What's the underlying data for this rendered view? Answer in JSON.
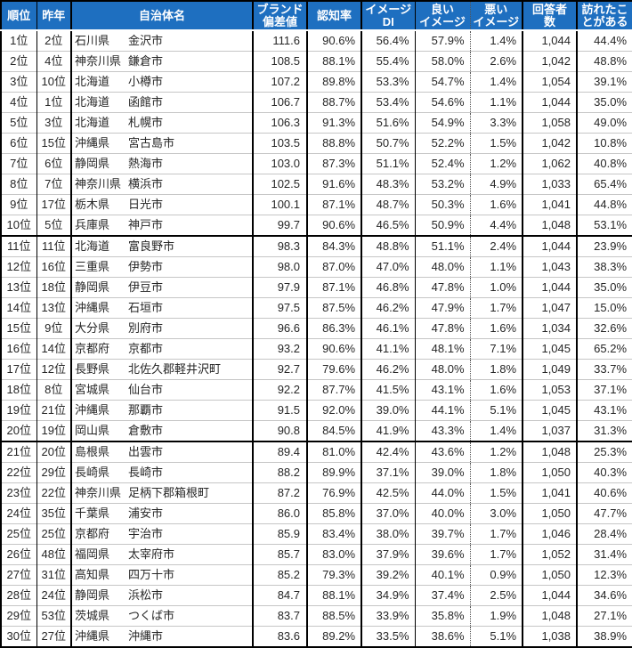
{
  "colors": {
    "header_bg": "#1E6FC0",
    "header_text": "#ffffff",
    "body_text": "#262626",
    "row_rule": "#c6c6c6",
    "heavy_rule": "#000000"
  },
  "chart_data": {
    "type": "table",
    "header_labels": [
      "順位",
      "昨年",
      "自治体名",
      "ブランド\n偏差値",
      "認知率",
      "イメージ\nDI",
      "良い\nイメージ",
      "悪い\nイメージ",
      "回答者\n数",
      "訪れたこ\nとがある"
    ],
    "field_names": [
      "rank",
      "prev_year_rank",
      "prefecture",
      "municipality",
      "brand_score",
      "recognition_rate",
      "image_di",
      "good_image",
      "bad_image",
      "respondents",
      "visited"
    ],
    "group_separators_after_ranks": [
      10,
      20
    ],
    "rows": [
      [
        "1位",
        "2位",
        "石川県",
        "金沢市",
        "111.6",
        "90.6%",
        "56.4%",
        "57.9%",
        "1.4%",
        "1,044",
        "44.4%"
      ],
      [
        "2位",
        "4位",
        "神奈川県",
        "鎌倉市",
        "108.5",
        "88.1%",
        "55.4%",
        "58.0%",
        "2.6%",
        "1,042",
        "48.8%"
      ],
      [
        "3位",
        "10位",
        "北海道",
        "小樽市",
        "107.2",
        "89.8%",
        "53.3%",
        "54.7%",
        "1.4%",
        "1,054",
        "39.1%"
      ],
      [
        "4位",
        "1位",
        "北海道",
        "函館市",
        "106.7",
        "88.7%",
        "53.4%",
        "54.6%",
        "1.1%",
        "1,044",
        "35.0%"
      ],
      [
        "5位",
        "3位",
        "北海道",
        "札幌市",
        "106.3",
        "91.3%",
        "51.6%",
        "54.9%",
        "3.3%",
        "1,058",
        "49.0%"
      ],
      [
        "6位",
        "15位",
        "沖縄県",
        "宮古島市",
        "103.5",
        "88.8%",
        "50.7%",
        "52.2%",
        "1.5%",
        "1,042",
        "10.8%"
      ],
      [
        "7位",
        "6位",
        "静岡県",
        "熱海市",
        "103.0",
        "87.3%",
        "51.1%",
        "52.4%",
        "1.2%",
        "1,062",
        "40.8%"
      ],
      [
        "8位",
        "7位",
        "神奈川県",
        "横浜市",
        "102.5",
        "91.6%",
        "48.3%",
        "53.2%",
        "4.9%",
        "1,033",
        "65.4%"
      ],
      [
        "9位",
        "17位",
        "栃木県",
        "日光市",
        "100.1",
        "87.1%",
        "48.7%",
        "50.3%",
        "1.6%",
        "1,041",
        "44.8%"
      ],
      [
        "10位",
        "5位",
        "兵庫県",
        "神戸市",
        "99.7",
        "90.6%",
        "46.5%",
        "50.9%",
        "4.4%",
        "1,048",
        "53.1%"
      ],
      [
        "11位",
        "11位",
        "北海道",
        "富良野市",
        "98.3",
        "84.3%",
        "48.8%",
        "51.1%",
        "2.4%",
        "1,044",
        "23.9%"
      ],
      [
        "12位",
        "16位",
        "三重県",
        "伊勢市",
        "98.0",
        "87.0%",
        "47.0%",
        "48.0%",
        "1.1%",
        "1,043",
        "38.3%"
      ],
      [
        "13位",
        "18位",
        "静岡県",
        "伊豆市",
        "97.9",
        "87.1%",
        "46.8%",
        "47.8%",
        "1.0%",
        "1,044",
        "35.0%"
      ],
      [
        "14位",
        "13位",
        "沖縄県",
        "石垣市",
        "97.5",
        "87.5%",
        "46.2%",
        "47.9%",
        "1.7%",
        "1,047",
        "15.0%"
      ],
      [
        "15位",
        "9位",
        "大分県",
        "別府市",
        "96.6",
        "86.3%",
        "46.1%",
        "47.8%",
        "1.6%",
        "1,034",
        "32.6%"
      ],
      [
        "16位",
        "14位",
        "京都府",
        "京都市",
        "93.2",
        "90.6%",
        "41.1%",
        "48.1%",
        "7.1%",
        "1,045",
        "65.2%"
      ],
      [
        "17位",
        "12位",
        "長野県",
        "北佐久郡軽井沢町",
        "92.7",
        "79.6%",
        "46.2%",
        "48.0%",
        "1.8%",
        "1,049",
        "33.7%"
      ],
      [
        "18位",
        "8位",
        "宮城県",
        "仙台市",
        "92.2",
        "87.7%",
        "41.5%",
        "43.1%",
        "1.6%",
        "1,053",
        "37.1%"
      ],
      [
        "19位",
        "21位",
        "沖縄県",
        "那覇市",
        "91.5",
        "92.0%",
        "39.0%",
        "44.1%",
        "5.1%",
        "1,045",
        "43.1%"
      ],
      [
        "20位",
        "19位",
        "岡山県",
        "倉敷市",
        "90.8",
        "84.5%",
        "41.9%",
        "43.3%",
        "1.4%",
        "1,037",
        "31.3%"
      ],
      [
        "21位",
        "20位",
        "島根県",
        "出雲市",
        "89.4",
        "81.0%",
        "42.4%",
        "43.6%",
        "1.2%",
        "1,048",
        "25.3%"
      ],
      [
        "22位",
        "29位",
        "長崎県",
        "長崎市",
        "88.2",
        "89.9%",
        "37.1%",
        "39.0%",
        "1.8%",
        "1,050",
        "40.3%"
      ],
      [
        "23位",
        "22位",
        "神奈川県",
        "足柄下郡箱根町",
        "87.2",
        "76.9%",
        "42.5%",
        "44.0%",
        "1.5%",
        "1,041",
        "40.6%"
      ],
      [
        "24位",
        "35位",
        "千葉県",
        "浦安市",
        "86.0",
        "85.8%",
        "37.0%",
        "40.0%",
        "3.0%",
        "1,050",
        "47.7%"
      ],
      [
        "25位",
        "25位",
        "京都府",
        "宇治市",
        "85.9",
        "83.4%",
        "38.0%",
        "39.7%",
        "1.7%",
        "1,046",
        "28.4%"
      ],
      [
        "26位",
        "48位",
        "福岡県",
        "太宰府市",
        "85.7",
        "83.0%",
        "37.9%",
        "39.6%",
        "1.7%",
        "1,052",
        "31.4%"
      ],
      [
        "27位",
        "31位",
        "高知県",
        "四万十市",
        "85.2",
        "79.3%",
        "39.2%",
        "40.1%",
        "0.9%",
        "1,050",
        "12.3%"
      ],
      [
        "28位",
        "24位",
        "静岡県",
        "浜松市",
        "84.7",
        "88.1%",
        "34.9%",
        "37.4%",
        "2.5%",
        "1,044",
        "34.6%"
      ],
      [
        "29位",
        "53位",
        "茨城県",
        "つくば市",
        "83.7",
        "88.5%",
        "33.9%",
        "35.8%",
        "1.9%",
        "1,048",
        "27.1%"
      ],
      [
        "30位",
        "27位",
        "沖縄県",
        "沖縄市",
        "83.6",
        "89.2%",
        "33.5%",
        "38.6%",
        "5.1%",
        "1,038",
        "38.9%"
      ]
    ]
  }
}
